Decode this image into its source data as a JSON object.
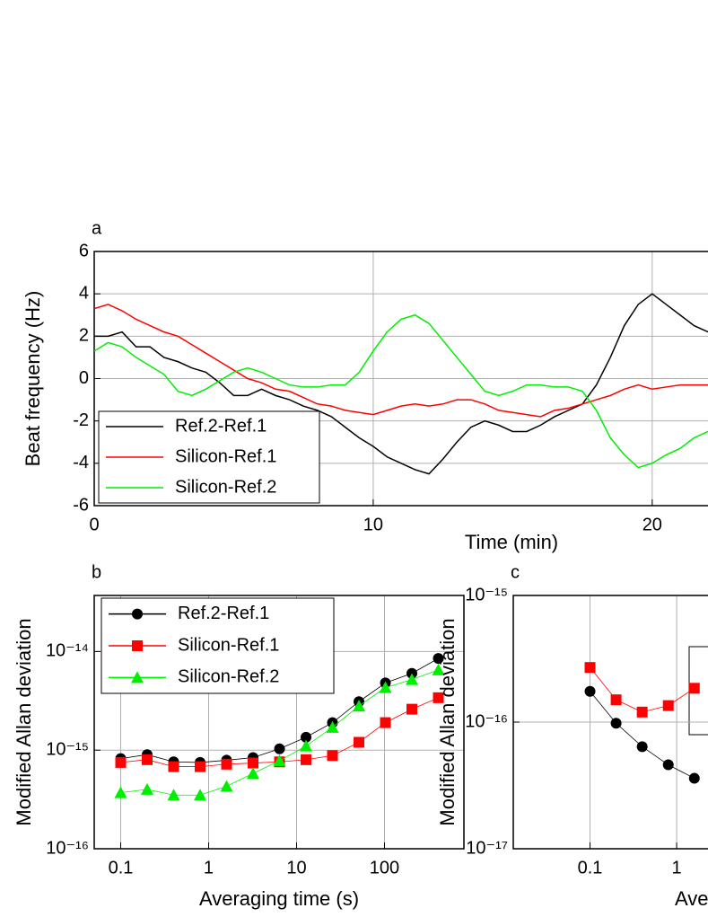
{
  "chart_data": [
    {
      "type": "line",
      "label": "a",
      "xlabel": "Time (min)",
      "ylabel": "Beat frequency (Hz)",
      "x": [
        0,
        0.5,
        1,
        1.5,
        2,
        2.5,
        3,
        3.5,
        4,
        4.5,
        5,
        5.5,
        6,
        6.5,
        7,
        7.5,
        8,
        8.5,
        9,
        9.5,
        10,
        10.5,
        11,
        11.5,
        12,
        12.5,
        13,
        13.5,
        14,
        14.5,
        15,
        15.5,
        16,
        16.5,
        17,
        17.5,
        18,
        18.5,
        19,
        19.5,
        20,
        20.5,
        21,
        21.5,
        22
      ],
      "series": [
        {
          "name": "Ref.2-Ref.1",
          "color": "#000000",
          "values": [
            2,
            2,
            2.2,
            1.5,
            1.5,
            1,
            0.8,
            0.5,
            0.3,
            -0.2,
            -0.8,
            -0.8,
            -0.5,
            -0.8,
            -1,
            -1.3,
            -1.5,
            -1.8,
            -2.3,
            -2.8,
            -3.2,
            -3.7,
            -4,
            -4.3,
            -4.5,
            -3.8,
            -3,
            -2.3,
            -2,
            -2.2,
            -2.5,
            -2.5,
            -2.2,
            -1.8,
            -1.5,
            -1.2,
            -0.3,
            1,
            2.5,
            3.5,
            4,
            3.5,
            3,
            2.5,
            2.2
          ]
        },
        {
          "name": "Silicon-Ref.1",
          "color": "#ff0000",
          "values": [
            3.3,
            3.5,
            3.2,
            2.8,
            2.5,
            2.2,
            2,
            1.6,
            1.2,
            0.8,
            0.4,
            0,
            -0.2,
            -0.5,
            -0.6,
            -0.9,
            -1.2,
            -1.3,
            -1.5,
            -1.6,
            -1.7,
            -1.5,
            -1.3,
            -1.2,
            -1.3,
            -1.2,
            -1,
            -1,
            -1.2,
            -1.5,
            -1.6,
            -1.7,
            -1.8,
            -1.5,
            -1.4,
            -1.2,
            -1,
            -0.8,
            -0.5,
            -0.3,
            -0.5,
            -0.4,
            -0.3,
            -0.3,
            -0.3
          ]
        },
        {
          "name": "Silicon-Ref.2",
          "color": "#00ee00",
          "values": [
            1.3,
            1.7,
            1.5,
            1,
            0.6,
            0.2,
            -0.6,
            -0.8,
            -0.5,
            -0.1,
            0.3,
            0.5,
            0.3,
            0,
            -0.3,
            -0.4,
            -0.4,
            -0.3,
            -0.3,
            0.3,
            1.3,
            2.2,
            2.8,
            3,
            2.6,
            1.8,
            1,
            0.2,
            -0.6,
            -0.8,
            -0.6,
            -0.3,
            -0.3,
            -0.4,
            -0.4,
            -0.6,
            -1.5,
            -2.8,
            -3.6,
            -4.2,
            -4,
            -3.6,
            -3.3,
            -2.8,
            -2.5
          ]
        }
      ],
      "xlim": [
        0,
        22
      ],
      "xticks": [
        0,
        10,
        20
      ],
      "ylim": [
        -6,
        6
      ],
      "yticks": [
        -6,
        -4,
        -2,
        0,
        2,
        4,
        6
      ],
      "grid": true,
      "legend": "bottom-left"
    },
    {
      "type": "line",
      "label": "b",
      "xlabel": "Averaging time (s)",
      "ylabel": "Modified Allan deviation",
      "x": [
        0.1,
        0.2,
        0.4,
        0.8,
        1.6,
        3.2,
        6.4,
        12.8,
        25.6,
        51.2,
        102.4,
        204.8,
        409.6
      ],
      "series": [
        {
          "name": "Ref.2-Ref.1",
          "color": "#000000",
          "marker": "circle",
          "values": [
            8.2e-16,
            9e-16,
            7.6e-16,
            7.5e-16,
            7.9e-16,
            8.4e-16,
            1.03e-15,
            1.35e-15,
            1.9e-15,
            3.1e-15,
            4.8e-15,
            6e-15,
            8.5e-15
          ]
        },
        {
          "name": "Silicon-Ref.1",
          "color": "#ff0000",
          "marker": "square",
          "values": [
            7.5e-16,
            8e-16,
            6.8e-16,
            6.8e-16,
            7.2e-16,
            7.4e-16,
            7.6e-16,
            8e-16,
            8.8e-16,
            1.2e-15,
            1.9e-15,
            2.6e-15,
            3.4e-15
          ]
        },
        {
          "name": "Silicon-Ref.2",
          "color": "#00ee00",
          "marker": "triangle",
          "values": [
            3.7e-16,
            4e-16,
            3.5e-16,
            3.5e-16,
            4.3e-16,
            5.8e-16,
            7.8e-16,
            1.1e-15,
            1.7e-15,
            2.8e-15,
            4.3e-15,
            5.2e-15,
            6.5e-15
          ]
        }
      ],
      "log_x": true,
      "log_y": true,
      "xlim": [
        0.05,
        800
      ],
      "xticks": [
        0.1,
        1,
        10,
        100
      ],
      "ylim": [
        1e-16,
        3.7e-14
      ],
      "yticks": [
        {
          "value": 1e-16,
          "label": "10⁻¹⁶"
        },
        {
          "value": 1e-15,
          "label": "10⁻¹⁵"
        },
        {
          "value": 1e-14,
          "label": "10⁻¹⁴"
        }
      ],
      "grid": true,
      "legend": "top-left"
    },
    {
      "type": "line",
      "label": "c",
      "xlabel": "Avera",
      "ylabel": "Modified Allan deviation",
      "x": [
        0.1,
        0.2,
        0.4,
        0.8,
        1.6
      ],
      "series": [
        {
          "color": "#000000",
          "marker": "circle",
          "values": [
            1.75e-16,
            9.8e-17,
            6.4e-17,
            4.6e-17,
            3.6e-17
          ]
        },
        {
          "color": "#ff0000",
          "marker": "square",
          "values": [
            2.7e-16,
            1.5e-16,
            1.2e-16,
            1.35e-16,
            1.85e-16
          ]
        }
      ],
      "log_x": true,
      "log_y": true,
      "xlim": [
        0.013,
        2.3
      ],
      "xticks": [
        0.1,
        1
      ],
      "ylim": [
        1e-17,
        1e-15
      ],
      "yticks": [
        {
          "value": 1e-17,
          "label": "10⁻¹⁷"
        },
        {
          "value": 1e-16,
          "label": "10⁻¹⁶"
        },
        {
          "value": 1e-15,
          "label": "10⁻¹⁵"
        }
      ],
      "grid": true
    }
  ]
}
